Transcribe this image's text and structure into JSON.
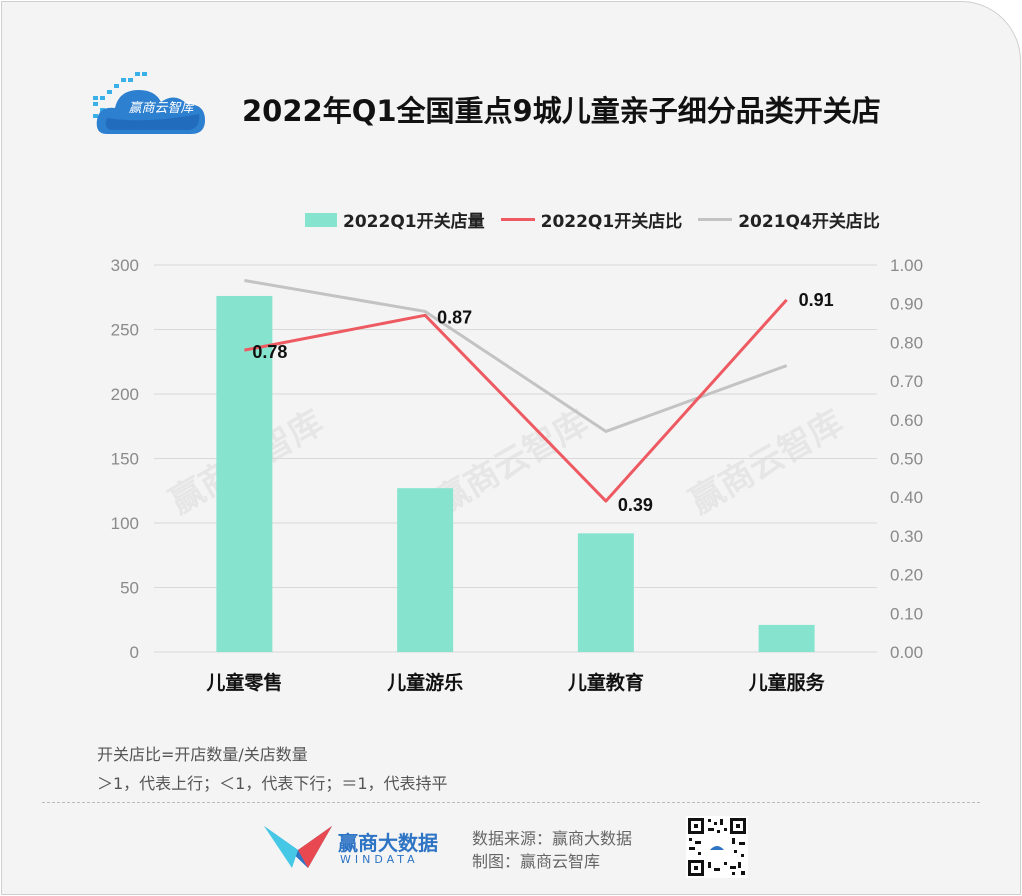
{
  "logo_text": "赢商云智库",
  "title": "2022年Q1全国重点9城儿童亲子细分品类开关店",
  "watermark": "赢商云智库",
  "chart_data": {
    "type": "bar",
    "title": "2022年Q1全国重点9城儿童亲子细分品类开关店",
    "categories": [
      "儿童零售",
      "儿童游乐",
      "儿童教育",
      "儿童服务"
    ],
    "series": [
      {
        "name": "2022Q1开关店量",
        "type": "bar",
        "axis": "left",
        "values": [
          276,
          127,
          92,
          21
        ],
        "color": "#86e3cd"
      },
      {
        "name": "2022Q1开关店比",
        "type": "line",
        "axis": "right",
        "values": [
          0.78,
          0.87,
          0.39,
          0.91
        ],
        "color": "#ee5a62",
        "data_labels": [
          "0.78",
          "0.87",
          "0.39",
          "0.91"
        ]
      },
      {
        "name": "2021Q4开关店比",
        "type": "line",
        "axis": "right",
        "values": [
          0.96,
          0.88,
          0.57,
          0.74
        ],
        "color": "#c3c3c3"
      }
    ],
    "y_left": {
      "min": 0,
      "max": 300,
      "ticks": [
        "0",
        "50",
        "100",
        "150",
        "200",
        "250",
        "300"
      ]
    },
    "y_right": {
      "min": 0,
      "max": 1,
      "ticks": [
        "0.00",
        "0.10",
        "0.20",
        "0.30",
        "0.40",
        "0.50",
        "0.60",
        "0.70",
        "0.80",
        "0.90",
        "1.00"
      ]
    },
    "grid": true,
    "legend_position": "top-right"
  },
  "notes": {
    "line1": "开关店比=开店数量/关店数量",
    "line2": "＞1，代表上行；＜1，代表下行；＝1，代表持平"
  },
  "footer": {
    "brand_cn": "赢商大数据",
    "brand_en": "WINDATA",
    "source": "数据来源：赢商大数据",
    "made_by": "制图：赢商云智库"
  }
}
